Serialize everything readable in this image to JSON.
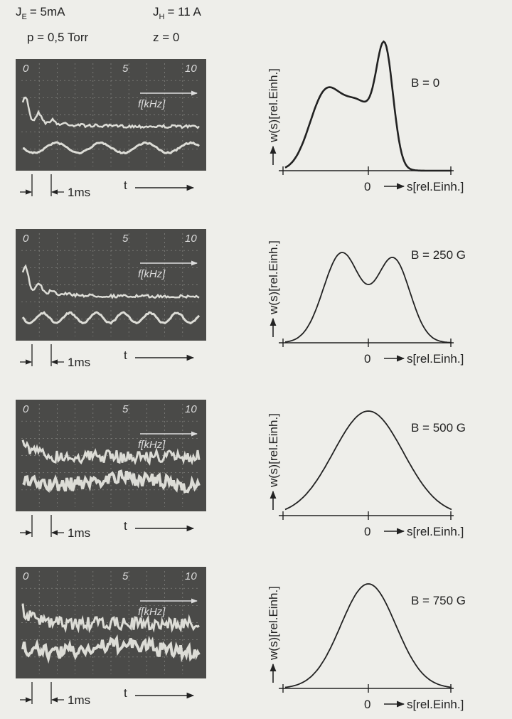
{
  "header": {
    "params": [
      {
        "symbol": "J",
        "subscript": "E",
        "text": "= 5mA"
      },
      {
        "symbol": "J",
        "subscript": "H",
        "text": "= 11 A"
      },
      {
        "text": "p = 0,5 Torr"
      },
      {
        "text": "z = 0"
      }
    ]
  },
  "panels": [
    {
      "oscillogram": {
        "scale": [
          "0",
          "5",
          "10"
        ],
        "axis_label": "f[kHz]",
        "time_marker": "1ms",
        "time_axis": "t"
      },
      "distribution": {
        "field": "B = 0",
        "y_axis": "w(s)[rel.Einh.]",
        "origin": "0",
        "x_axis": "s[rel.Einh.]"
      }
    },
    {
      "oscillogram": {
        "scale": [
          "0",
          "5",
          "10"
        ],
        "axis_label": "f[kHz]",
        "time_marker": "1ms",
        "time_axis": "t"
      },
      "distribution": {
        "field": "B = 250 G",
        "y_axis": "w(s)[rel.Einh.]",
        "origin": "0",
        "x_axis": "s[rel.Einh.]"
      }
    },
    {
      "oscillogram": {
        "scale": [
          "0",
          "5",
          "10"
        ],
        "axis_label": "f[kHz]",
        "time_marker": "1ms",
        "time_axis": "t"
      },
      "distribution": {
        "field": "B = 500 G",
        "y_axis": "w(s)[rel.Einh.]",
        "origin": "0",
        "x_axis": "s[rel.Einh.]"
      }
    },
    {
      "oscillogram": {
        "scale": [
          "0",
          "5",
          "10"
        ],
        "axis_label": "f[kHz]",
        "time_marker": "1ms",
        "time_axis": "t"
      },
      "distribution": {
        "field": "B = 750 G",
        "y_axis": "w(s)[rel.Einh.]",
        "origin": "0",
        "x_axis": "s[rel.Einh.]"
      }
    }
  ]
}
